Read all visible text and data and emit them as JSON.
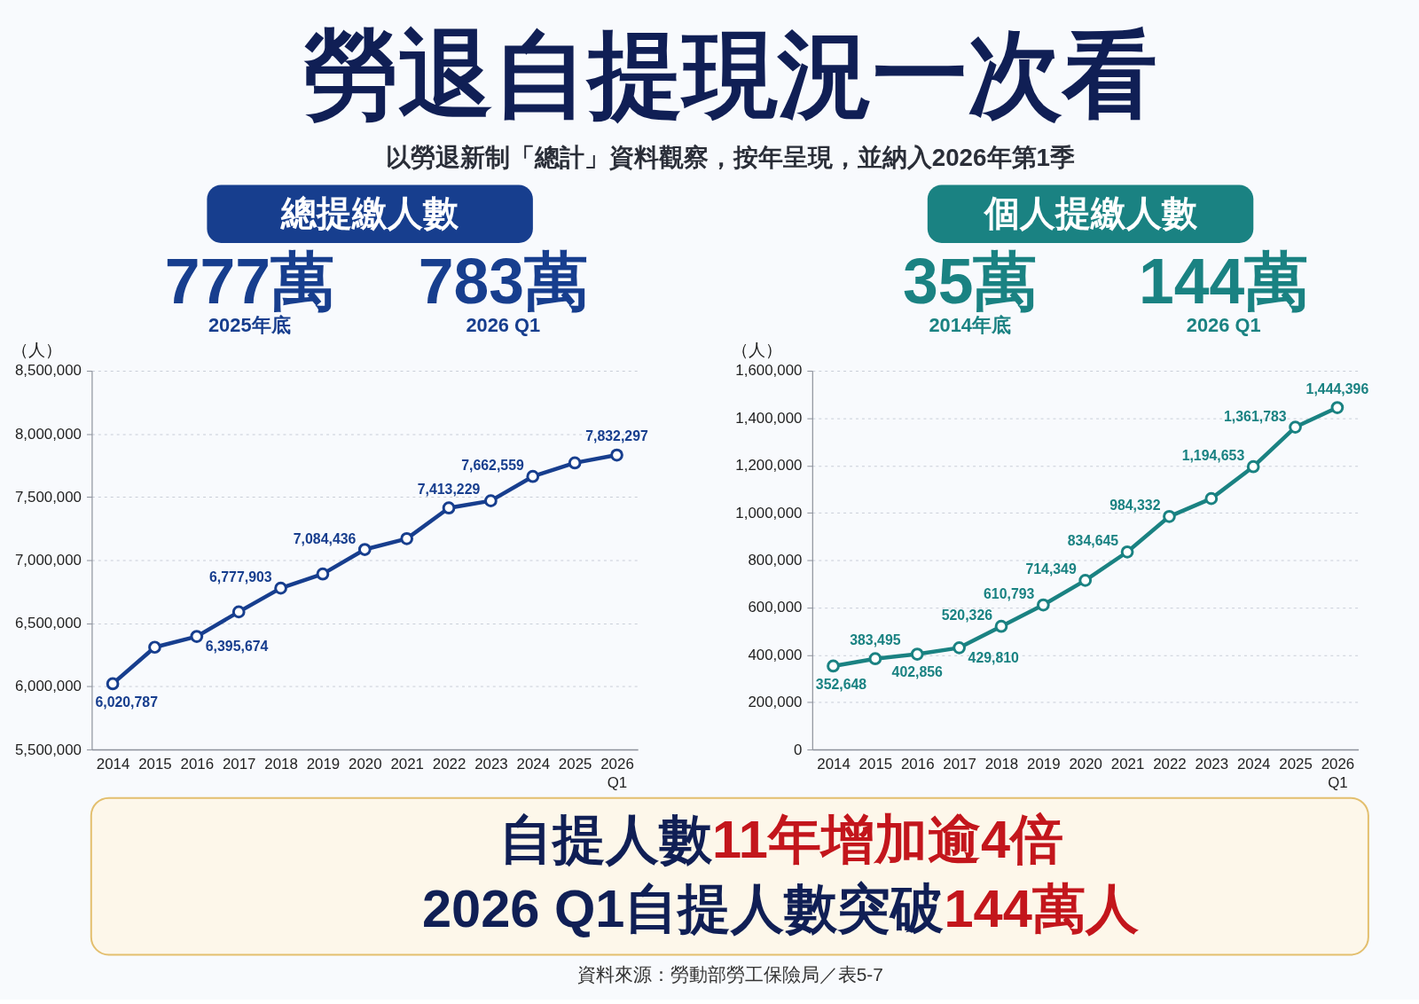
{
  "chart_data": [
    {
      "type": "other",
      "title": "勞退自提現況一次看",
      "subtitle": "以勞退新制「總計」資料觀察，按年呈現，並納入2026年第1季"
    },
    {
      "type": "line",
      "title": "總提繳人數",
      "ylabel": "（人）",
      "annotations": [
        "777萬",
        "2025年底",
        "783萬",
        "2026 Q1"
      ],
      "categories": [
        "2014",
        "2015",
        "2016",
        "2017",
        "2018",
        "2019",
        "2020",
        "2021",
        "2022",
        "2023",
        "2024",
        "2025",
        "2026 Q1"
      ],
      "values": [
        6020787,
        6310000,
        6395674,
        6590000,
        6777903,
        6890000,
        7084436,
        7170000,
        7413229,
        7470000,
        7662559,
        7770000,
        7832297
      ],
      "value_labels": [
        "6,020,787",
        null,
        "6,395,674",
        null,
        "6,777,903",
        null,
        "7,084,436",
        null,
        "7,413,229",
        null,
        "7,662,559",
        null,
        "7,832,297"
      ],
      "color": "#173e8e",
      "marker": "circle",
      "line_style": "solid",
      "ylim": [
        5500000,
        8500000
      ],
      "yticks": [
        {
          "value": 5500000,
          "label": "5,500,000"
        },
        {
          "value": 6000000,
          "label": "6,000,000"
        },
        {
          "value": 6500000,
          "label": "6,500,000"
        },
        {
          "value": 7000000,
          "label": "7,000,000"
        },
        {
          "value": 7500000,
          "label": "7,500,000"
        },
        {
          "value": 8000000,
          "label": "8,000,000"
        },
        {
          "value": 8500000,
          "label": "8,500,000"
        }
      ],
      "grid": "y"
    },
    {
      "type": "line",
      "title": "個人提繳人數",
      "ylabel": "（人）",
      "annotations": [
        "35萬",
        "2014年底",
        "144萬",
        "2026 Q1"
      ],
      "categories": [
        "2014",
        "2015",
        "2016",
        "2017",
        "2018",
        "2019",
        "2020",
        "2021",
        "2022",
        "2023",
        "2024",
        "2025",
        "2026 Q1"
      ],
      "values": [
        352648,
        383495,
        402856,
        429810,
        520326,
        610793,
        714349,
        834645,
        984332,
        1060000,
        1194653,
        1361783,
        1444396
      ],
      "value_labels": [
        "352,648",
        "383,495",
        "402,856",
        "429,810",
        "520,326",
        "610,793",
        "714,349",
        "834,645",
        "984,332",
        null,
        "1,194,653",
        "1,361,783",
        "1,444,396"
      ],
      "color": "#1a8282",
      "marker": "circle",
      "line_style": "solid",
      "ylim": [
        0,
        1600000
      ],
      "yticks": [
        0,
        {
          "value": 200000,
          "label": "200,000"
        },
        {
          "value": 400000,
          "label": "400,000"
        },
        {
          "value": 600000,
          "label": "600,000"
        },
        {
          "value": 800000,
          "label": "800,000"
        },
        {
          "value": 1000000,
          "label": "1,000,000"
        },
        {
          "value": 1200000,
          "label": "1,200,000"
        },
        {
          "value": 1400000,
          "label": "1,400,000"
        },
        {
          "value": 1600000,
          "label": "1,600,000"
        }
      ],
      "grid": "y"
    },
    {
      "type": "other",
      "annotations": [
        "自提人數",
        "11年增加逾4倍",
        "2026 Q1自提人數突破",
        "144萬人",
        "資料來源：勞動部勞工保險局／表5-7"
      ]
    }
  ]
}
